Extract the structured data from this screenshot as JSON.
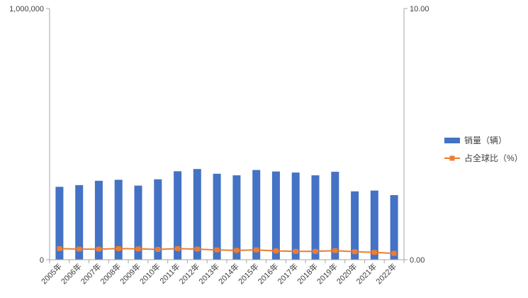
{
  "chart_data": {
    "type": "bar",
    "categories": [
      "2005年",
      "2006年",
      "2007年",
      "2008年",
      "2009年",
      "2010年",
      "2011年",
      "2012年",
      "2013年",
      "2014年",
      "2015年",
      "2016年",
      "2017年",
      "2018年",
      "2019年",
      "2020年",
      "2021年",
      "2022年"
    ],
    "series": [
      {
        "name": "销量（辆）",
        "type": "bar",
        "axis": "left",
        "color": "#4472C4",
        "values": [
          290000,
          297000,
          314000,
          318000,
          295000,
          320000,
          352000,
          361000,
          342000,
          336000,
          357000,
          351000,
          347000,
          336000,
          350000,
          272000,
          275000,
          257000
        ]
      },
      {
        "name": "占全球比（%）",
        "type": "line",
        "axis": "right",
        "color": "#ED7D31",
        "values": [
          0.44,
          0.42,
          0.42,
          0.44,
          0.43,
          0.41,
          0.44,
          0.42,
          0.39,
          0.37,
          0.39,
          0.35,
          0.33,
          0.33,
          0.36,
          0.32,
          0.29,
          0.25
        ]
      }
    ],
    "y_left": {
      "min": 0,
      "max": 1000000,
      "ticks": [
        "0",
        "1,000,000"
      ]
    },
    "y_right": {
      "min": 0,
      "max": 10,
      "ticks": [
        "0.00",
        "10.00"
      ]
    },
    "title": "",
    "xlabel": "",
    "ylabel": "",
    "grid": false,
    "legend_position": "right",
    "axis_color": "#A6A6A6"
  }
}
